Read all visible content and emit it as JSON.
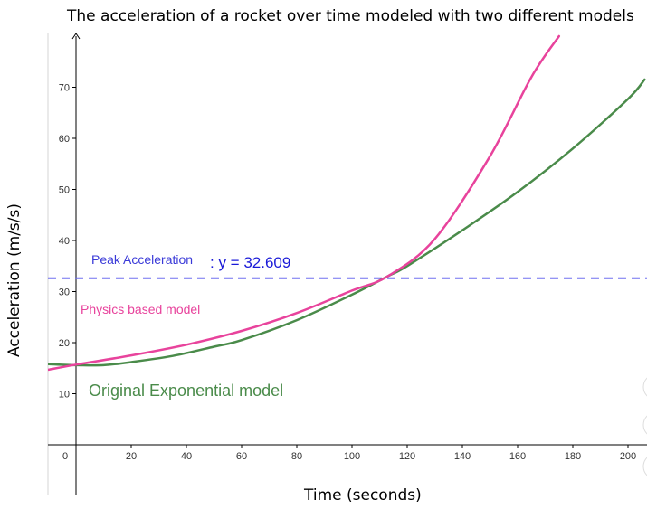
{
  "chart_data": {
    "type": "line",
    "title": "The acceleration of a rocket over time modeled with two different models",
    "xlabel": "Time (seconds)",
    "ylabel": "Acceleration (m/s/s)",
    "xlim": [
      -10,
      206
    ],
    "ylim": [
      -10,
      80
    ],
    "xticks": [
      0,
      20,
      40,
      60,
      80,
      100,
      120,
      140,
      160,
      180,
      200
    ],
    "yticks": [
      10,
      20,
      30,
      40,
      50,
      60,
      70
    ],
    "grid": false,
    "series": [
      {
        "name": "Physics based model",
        "color": "#e8439c",
        "x": [
          -10,
          0,
          20,
          40,
          60,
          80,
          100,
          113,
          130,
          150,
          165,
          175
        ],
        "y": [
          14.7,
          15.7,
          17.5,
          19.6,
          22.3,
          25.8,
          30.2,
          33.0,
          40.3,
          56.5,
          72.0,
          80.0
        ]
      },
      {
        "name": "Original Exponential model",
        "color": "#4a8b4a",
        "x": [
          -10,
          0,
          10,
          20,
          35,
          50,
          60,
          80,
          100,
          113,
          120,
          140,
          160,
          180,
          200,
          206
        ],
        "y": [
          15.8,
          15.6,
          15.6,
          16.2,
          17.4,
          19.2,
          20.5,
          24.4,
          29.4,
          33.0,
          35.0,
          42.0,
          49.5,
          58.0,
          67.7,
          71.5
        ]
      }
    ],
    "reference_line": {
      "label": "Peak Acceleration",
      "equation": ": y = 32.609",
      "y": 32.609,
      "color": "#7070f0",
      "style": "dashed"
    }
  }
}
